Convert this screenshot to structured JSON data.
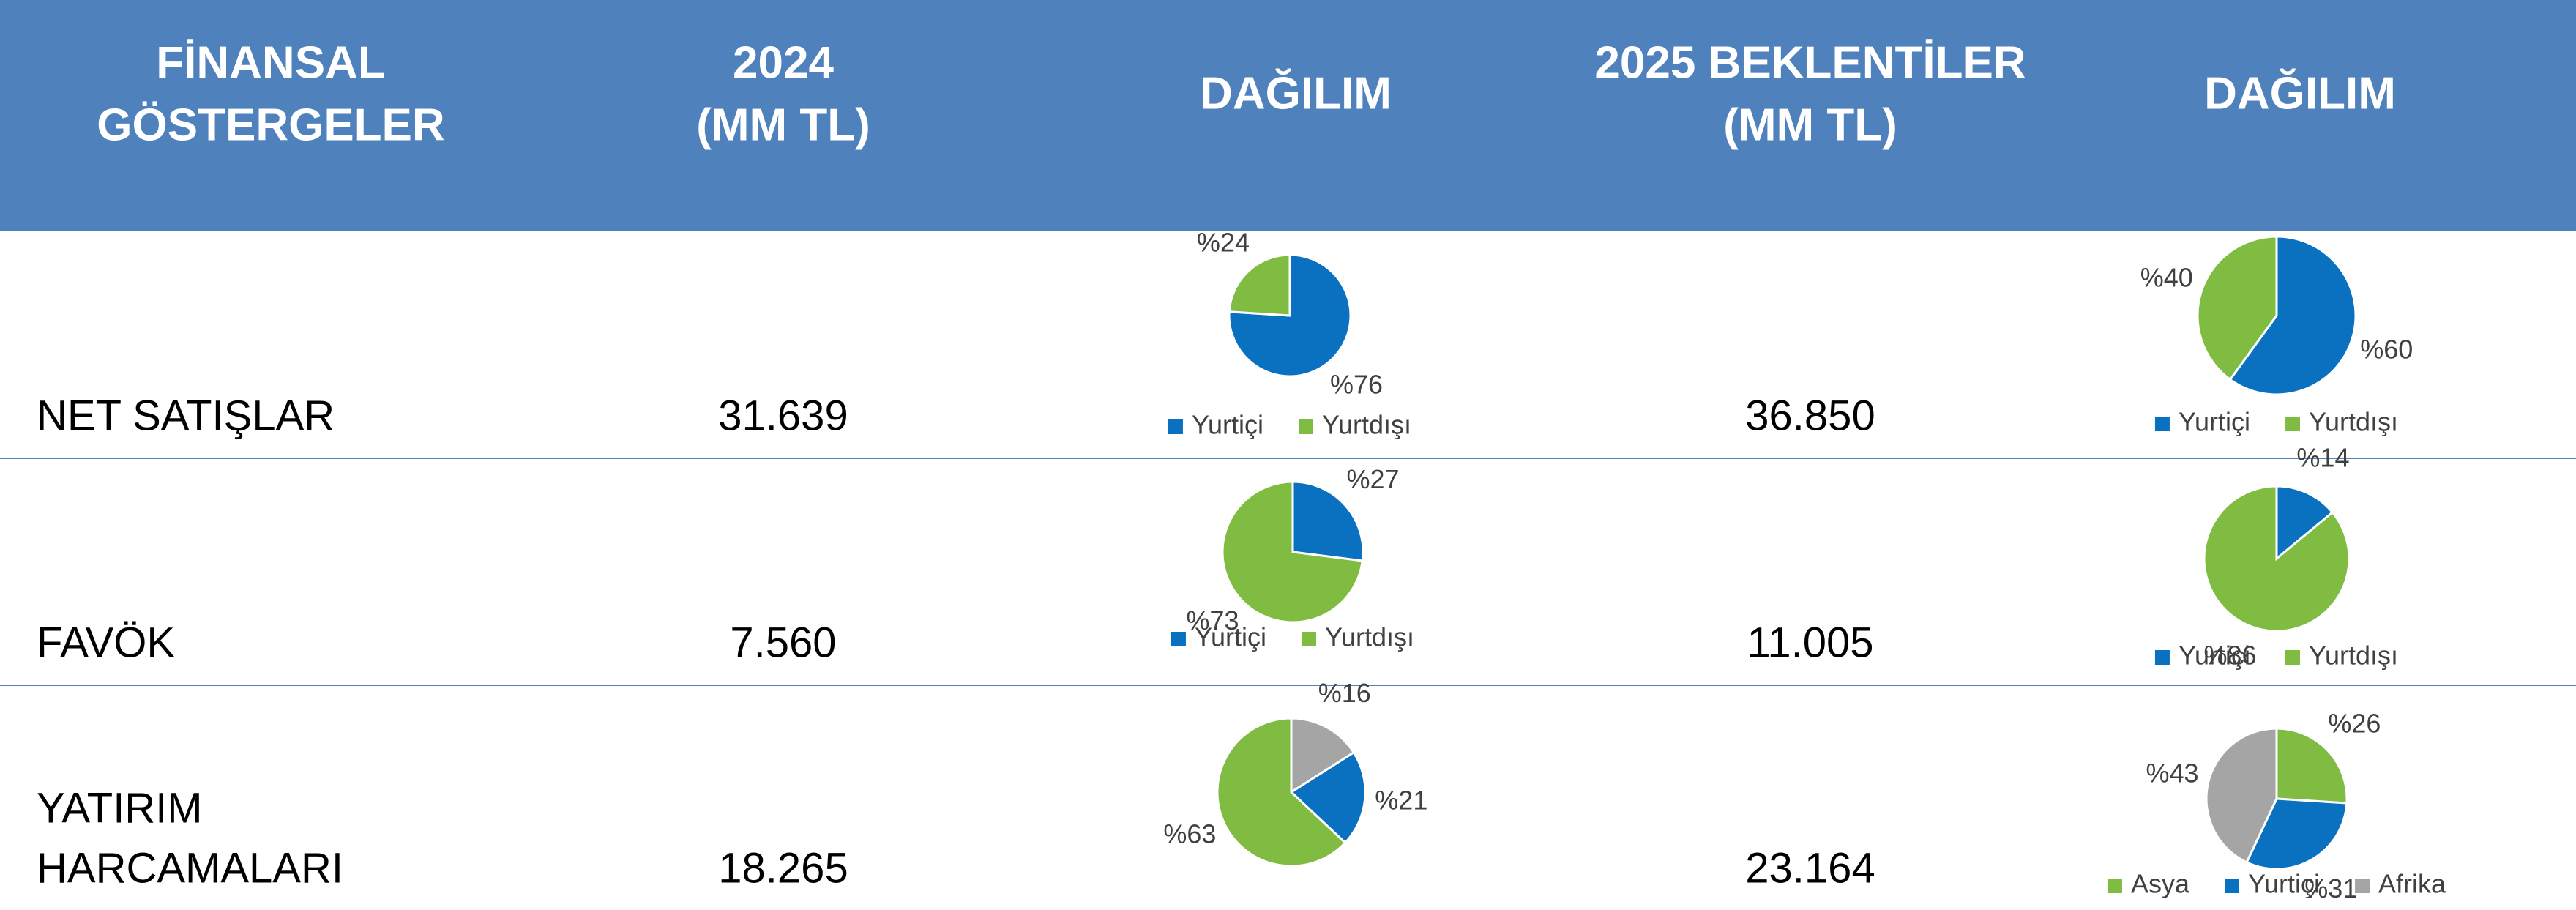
{
  "table": {
    "header": [
      [
        "FİNANSAL",
        "GÖSTERGELER"
      ],
      [
        "2024",
        "(MM TL)"
      ],
      [
        "DAĞILIM"
      ],
      [
        "2025 BEKLENTİLER",
        "(MM TL)"
      ],
      [
        "DAĞILIM"
      ]
    ],
    "rows": [
      [
        [
          "NET SATIŞLAR"
        ],
        "31.639",
        "36.850"
      ],
      [
        [
          "FAVÖK"
        ],
        "7.560",
        "11.005"
      ],
      [
        [
          "YATIRIM",
          "HARCAMALARI"
        ],
        "18.265",
        "23.164"
      ]
    ]
  },
  "chart_data": [
    {
      "type": "pie",
      "categories": [
        "Yurtiçi",
        "Yurtdışı"
      ],
      "values": [
        76,
        24
      ],
      "value_labels": [
        "%76",
        "%24"
      ],
      "colors": [
        "#0a70c0",
        "#7fbc41"
      ]
    },
    {
      "type": "pie",
      "categories": [
        "Yurtiçi",
        "Yurtdışı"
      ],
      "values": [
        60,
        40
      ],
      "value_labels": [
        "%60",
        "%40"
      ],
      "colors": [
        "#0a70c0",
        "#7fbc41"
      ]
    },
    {
      "type": "pie",
      "categories": [
        "Yurtiçi",
        "Yurtdışı"
      ],
      "values": [
        27,
        73
      ],
      "value_labels": [
        "%27",
        "%73"
      ],
      "colors": [
        "#0a70c0",
        "#7fbc41"
      ]
    },
    {
      "type": "pie",
      "categories": [
        "Yurtiçi",
        "Yurtdışı"
      ],
      "values": [
        14,
        86
      ],
      "value_labels": [
        "%14",
        "%86"
      ],
      "colors": [
        "#0a70c0",
        "#7fbc41"
      ]
    },
    {
      "type": "pie",
      "values": [
        16,
        21,
        63
      ],
      "value_labels": [
        "%16",
        "%21",
        "%63"
      ],
      "colors": [
        "#a5a5a5",
        "#0a70c0",
        "#7fbc41"
      ]
    },
    {
      "type": "pie",
      "categories": [
        "Asya",
        "Yurtiçi",
        "Afrika"
      ],
      "values": [
        26,
        31,
        43
      ],
      "value_labels": [
        "%26",
        "%31",
        "%43"
      ],
      "colors": [
        "#7fbc41",
        "#0a70c0",
        "#a5a5a5"
      ]
    }
  ]
}
